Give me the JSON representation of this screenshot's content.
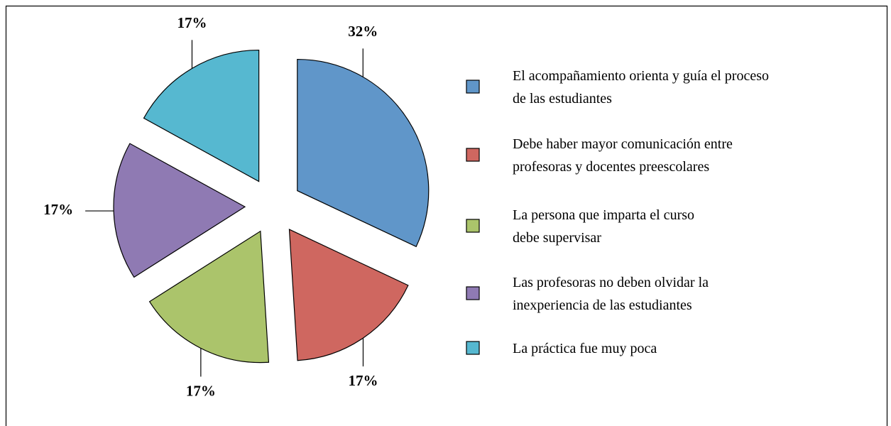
{
  "chart_data": {
    "type": "pie",
    "categories": [
      "El acompañamiento orienta y guía el proceso\nde las estudiantes",
      "Debe haber mayor comunicación entre\nprofesoras y docentes preescolares",
      "La persona que imparta el curso\ndebe supervisar",
      "Las profesoras no deben olvidar la\ninexperiencia de las estudiantes",
      "La práctica fue muy poca"
    ],
    "values": [
      32,
      17,
      17,
      17,
      17
    ],
    "value_labels": [
      "32%",
      "17%",
      "17%",
      "17%",
      "17%"
    ],
    "colors": [
      "#6096c9",
      "#cf6760",
      "#abc46b",
      "#8f7ab3",
      "#56b8d0"
    ],
    "legend": "right"
  }
}
